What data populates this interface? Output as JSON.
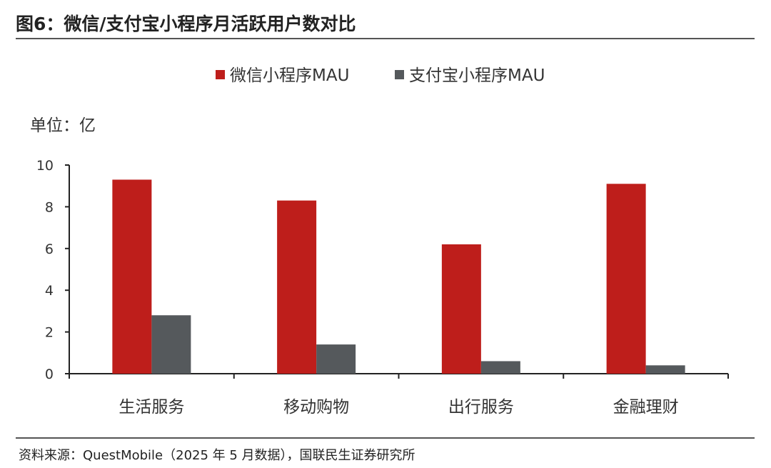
{
  "title": "图6：微信/支付宝小程序月活跃用户数对比",
  "source": "资料来源：QuestMobile（2025 年 5 月数据），国联民生证券研究所",
  "chart_data": {
    "type": "bar",
    "title": "图6：微信/支付宝小程序月活跃用户数对比",
    "unit_label": "单位：亿",
    "categories": [
      "生活服务",
      "移动购物",
      "出行服务",
      "金融理财"
    ],
    "series": [
      {
        "name": "微信小程序MAU",
        "color": "#BE1E1B",
        "values": [
          9.3,
          8.3,
          6.2,
          9.1
        ]
      },
      {
        "name": "支付宝小程序MAU",
        "color": "#55595C",
        "values": [
          2.8,
          1.4,
          0.6,
          0.4
        ]
      }
    ],
    "ylim": [
      0,
      10
    ],
    "yticks": [
      "0",
      "2",
      "4",
      "6",
      "8",
      "10"
    ],
    "legend_position": "top-center",
    "grid": false
  }
}
